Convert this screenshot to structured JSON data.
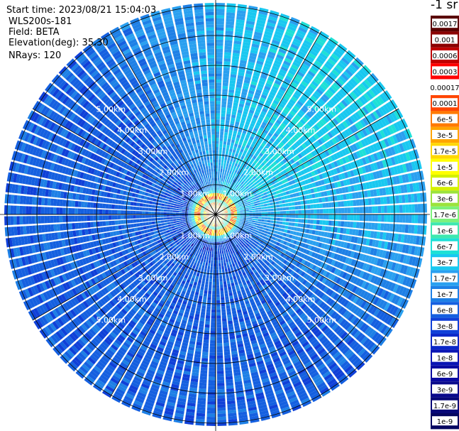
{
  "info": {
    "start_time": "Start time: 2023/08/21 15:04:03",
    "instrument": "WLS200s-181",
    "field": "Field: BETA",
    "elevation": "Elevation(deg): 35.30",
    "nrays": "NRays: 120"
  },
  "chart_data": {
    "type": "heatmap",
    "projection": "polar (PPI)",
    "field": "BETA",
    "nrays": 120,
    "range_rings_km": [
      1,
      2,
      3,
      4,
      5
    ],
    "range_labels": [
      "1.00km",
      "2.00km",
      "3.00km",
      "4.00km",
      "5.00km"
    ],
    "colorbar": {
      "title": "-1 sr",
      "ticks": [
        "0.0017",
        "0.001",
        "0.0006",
        "0.0003",
        "0.00017",
        "0.0001",
        "6e-5",
        "3e-5",
        "1.7e-5",
        "1e-5",
        "6e-6",
        "3e-6",
        "1.7e-6",
        "1e-6",
        "6e-7",
        "3e-7",
        "1.7e-7",
        "1e-7",
        "6e-8",
        "3e-8",
        "1.7e-8",
        "1e-8",
        "6e-9",
        "3e-9",
        "1.7e-9",
        "1e-9"
      ],
      "colors": [
        "#5a0000",
        "#8b0000",
        "#c00000",
        "#ff0000",
        "#ffffff",
        "#ff4500",
        "#ff7a00",
        "#ffa500",
        "#ffd700",
        "#ffff00",
        "#d4f000",
        "#9be33c",
        "#7df27d",
        "#3ee8b0",
        "#1ee0d6",
        "#19c8f0",
        "#2aa0f0",
        "#1e80e6",
        "#1560e0",
        "#1040d8",
        "#0c28c8",
        "#0a14b4",
        "#0a0aa0",
        "#0a0a8c",
        "#080878",
        "#060660"
      ]
    },
    "description_values": {
      "center_peak": "1e-4",
      "near_field_ring_km": 0.5,
      "background_east": "3e-7",
      "background_west": "6e-8"
    }
  }
}
